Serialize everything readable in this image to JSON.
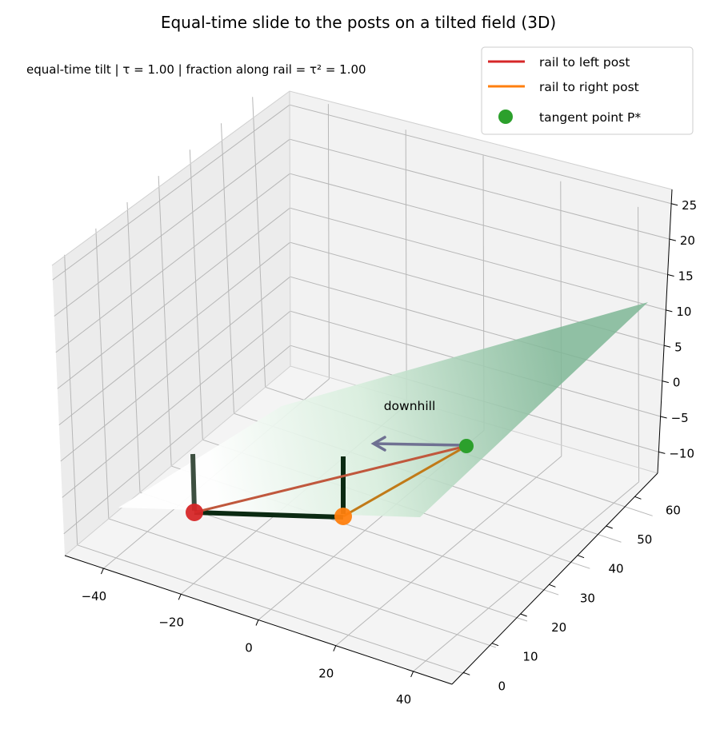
{
  "chart_data": {
    "type": "3d-surface",
    "title": "Equal-time slide to the posts on a tilted field (3D)",
    "subtitle": "equal-time tilt  |  τ = 1.00  |  fraction along rail = τ² = 1.00",
    "x_ticks": [
      "−40",
      "−20",
      "0",
      "20",
      "40"
    ],
    "y_ticks": [
      "0",
      "10",
      "20",
      "30",
      "40",
      "50",
      "60"
    ],
    "z_ticks": [
      "−10",
      "−5",
      "0",
      "5",
      "10",
      "15",
      "20",
      "25"
    ],
    "xlim": [
      -50,
      50
    ],
    "ylim": [
      -4,
      68
    ],
    "zlim": [
      -13,
      27
    ],
    "grid": true,
    "legend_position": "top-right",
    "colors": {
      "left_rail": "#d62728",
      "right_rail": "#ff7f0e",
      "tangent": "#2ca02c",
      "posts": "#0b2a12",
      "arrow": "#6f7192",
      "surface": "#3f9e6a"
    },
    "legend": [
      {
        "label": "rail to left post",
        "kind": "line",
        "color": "#d62728"
      },
      {
        "label": "rail to right post",
        "kind": "line",
        "color": "#ff7f0e"
      },
      {
        "label": "tangent point P*",
        "kind": "marker",
        "color": "#2ca02c"
      }
    ],
    "surface": {
      "x_range": [
        -35,
        45
      ],
      "y_range": [
        0,
        64
      ],
      "plane": "z = -0.28·y + 0.15·x"
    },
    "points": [
      {
        "name": "left post base",
        "x": -28,
        "y": 0,
        "z": 0,
        "color": "#d62728"
      },
      {
        "name": "right post base",
        "x": 12,
        "y": 0,
        "z": 0,
        "color": "#ff7f0e"
      },
      {
        "name": "tangent point P*",
        "x": 29,
        "y": 29,
        "z": 0,
        "color": "#2ca02c"
      }
    ],
    "posts": [
      {
        "x": -28,
        "y": 0,
        "z_bottom": 0,
        "z_top": 12
      },
      {
        "x": 12,
        "y": 0,
        "z_bottom": 0,
        "z_top": 12
      }
    ],
    "goal_line": {
      "x_from": -28,
      "x_to": 12,
      "y": 0,
      "z": 0
    },
    "annotation": {
      "text": "downhill",
      "color": "#6f7192",
      "arrow_from": [
        29,
        29,
        0
      ],
      "arrow_to": [
        12,
        29,
        0
      ]
    }
  }
}
